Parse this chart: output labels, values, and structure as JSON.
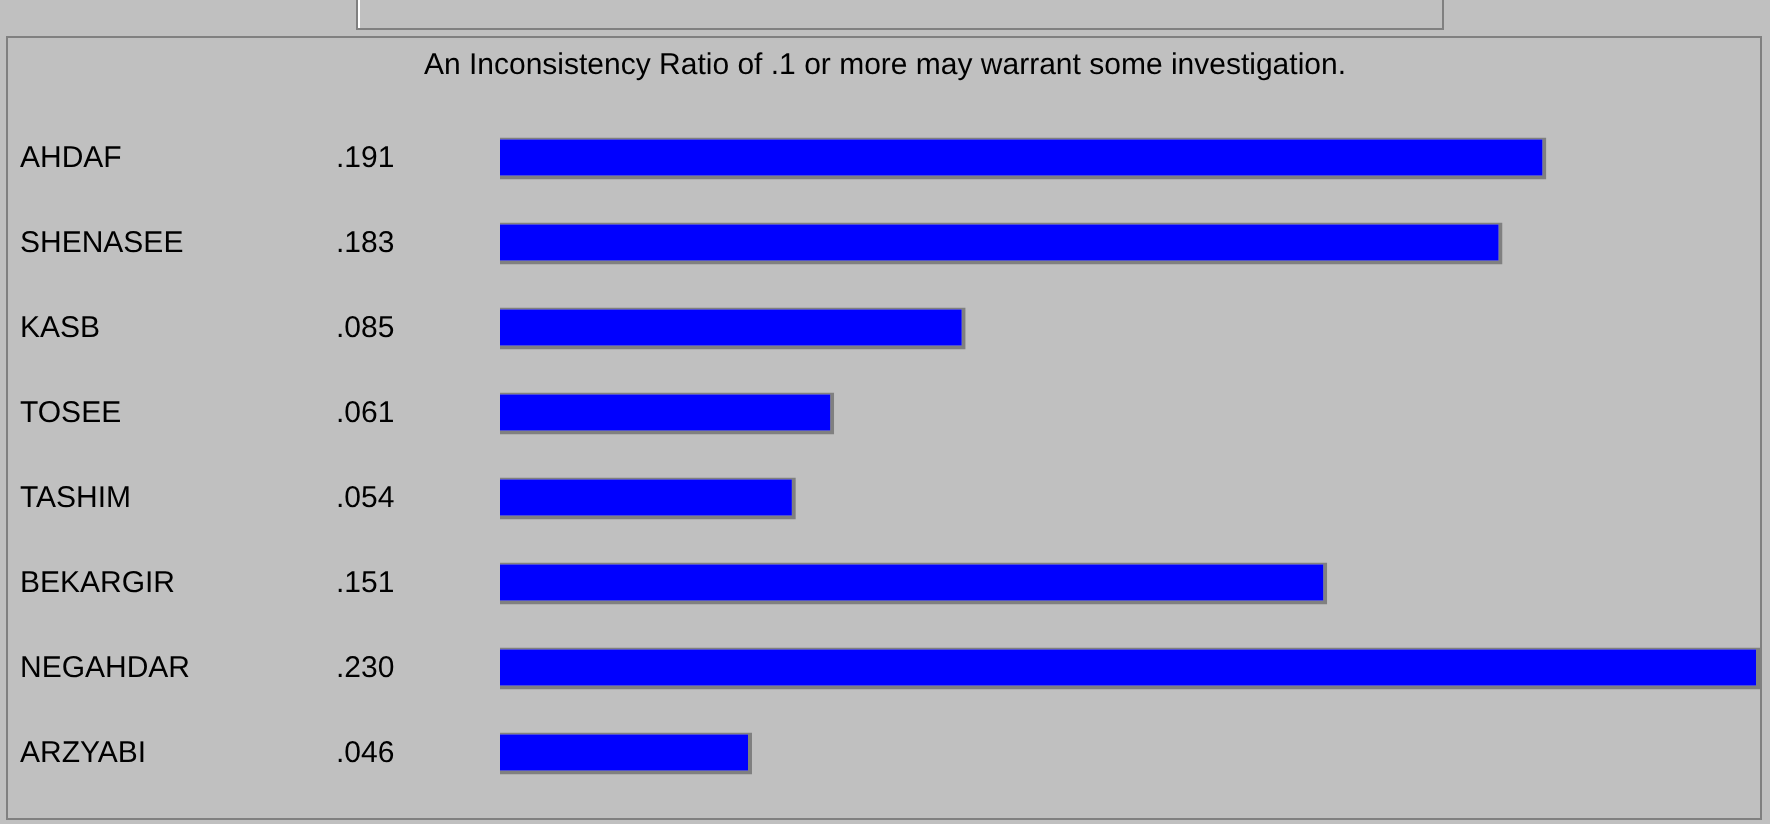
{
  "chart_data": {
    "type": "bar",
    "orientation": "horizontal",
    "title": "An Inconsistency Ratio of .1 or more may warrant some investigation.",
    "categories": [
      "AHDAF",
      "SHENASEE",
      "KASB",
      "TOSEE",
      "TASHIM",
      "BEKARGIR",
      "NEGAHDAR",
      "ARZYABI"
    ],
    "values": [
      0.191,
      0.183,
      0.085,
      0.061,
      0.054,
      0.151,
      0.23,
      0.046
    ],
    "value_labels": [
      ".191",
      ".183",
      ".085",
      ".061",
      ".054",
      ".151",
      ".230",
      ".046"
    ],
    "color": "#0000ff",
    "xlim": [
      0,
      0.23
    ],
    "tick_labels": "y"
  }
}
